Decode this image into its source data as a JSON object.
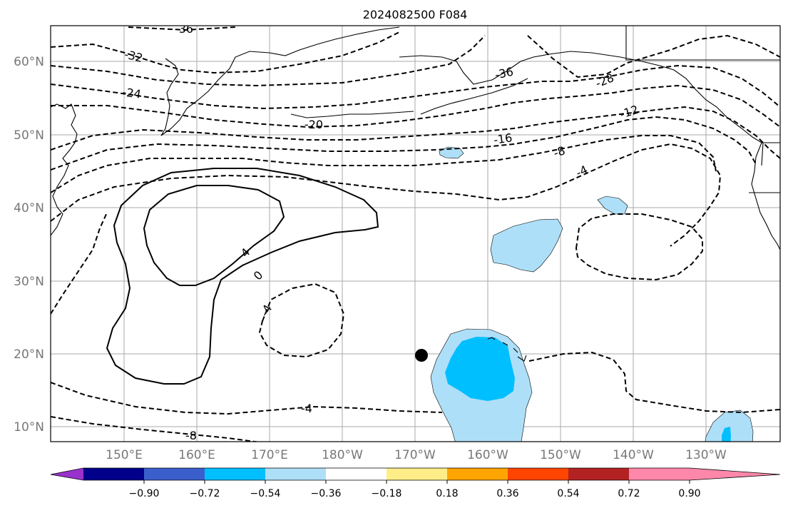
{
  "title": "2024082500 F084",
  "lat_labels": [
    "60°N",
    "50°N",
    "40°N",
    "30°N",
    "20°N",
    "10°N"
  ],
  "lon_labels": [
    "150°E",
    "160°E",
    "170°E",
    "180°W",
    "170°W",
    "160°W",
    "150°W",
    "140°W",
    "130°W"
  ],
  "contour_labels": [
    "-36",
    "-32",
    "-24",
    "-20",
    "-36",
    "-28",
    "-16",
    "-12",
    "-8",
    "-4",
    "4",
    "0",
    "-4",
    "-4",
    "-8"
  ],
  "colorbar": {
    "colors": [
      "#9932cc",
      "#00008b",
      "#3a5fcd",
      "#00bfff",
      "#aedff8",
      "#ffffff",
      "#ffee88",
      "#ffa500",
      "#ff4500",
      "#b22222",
      "#ff88aa"
    ],
    "tick_labels": [
      "−0.90",
      "−0.72",
      "−0.54",
      "−0.36",
      "−0.18",
      "0.18",
      "0.36",
      "0.54",
      "0.72",
      "0.90"
    ]
  }
}
